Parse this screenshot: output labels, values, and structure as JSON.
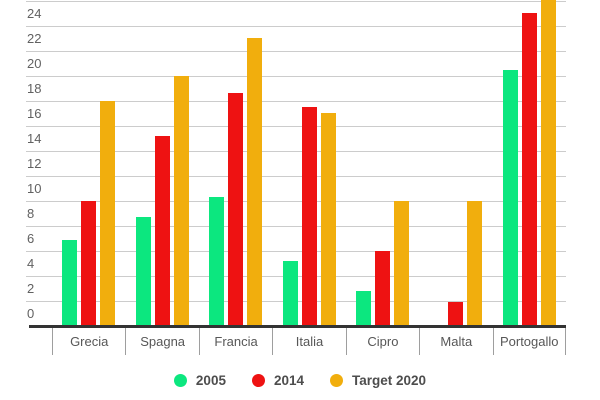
{
  "chart_data": {
    "type": "bar",
    "title": "",
    "xlabel": "",
    "ylabel": "",
    "categories": [
      "Grecia",
      "Spagna",
      "Francia",
      "Italia",
      "Cipro",
      "Malta",
      "Portogallo"
    ],
    "series": [
      {
        "name": "2005",
        "color": "#0ce77f",
        "values": [
          6.9,
          8.7,
          10.3,
          5.2,
          2.8,
          0,
          20.5
        ]
      },
      {
        "name": "2014",
        "color": "#ee1212",
        "values": [
          10,
          15.2,
          18.6,
          17.5,
          6.0,
          1.9,
          25.0
        ]
      },
      {
        "name": "Target 2020",
        "color": "#f1ae0d",
        "values": [
          18,
          20,
          23,
          17,
          10,
          10,
          31
        ]
      }
    ],
    "ylim": [
      0,
      26
    ],
    "y_tick_step": 2,
    "y_tick_labels": [
      "0",
      "2",
      "4",
      "6",
      "8",
      "10",
      "12",
      "14",
      "16",
      "18",
      "20",
      "22",
      "24"
    ],
    "grid": true,
    "legend_position": "bottom",
    "top_cropped": true
  },
  "legend": {
    "items": [
      {
        "label": "2005",
        "color": "#0ce77f"
      },
      {
        "label": "2014",
        "color": "#ee1212"
      },
      {
        "label": "Target 2020",
        "color": "#f1ae0d"
      }
    ]
  },
  "colors": {
    "gridline": "#cccccc",
    "baseline": "#333333",
    "axis_tick": "#9e9e9e",
    "axis_label": "#575757",
    "y_label": "#616161",
    "legend_text": "#4d4d4d",
    "background": "#ffffff"
  }
}
